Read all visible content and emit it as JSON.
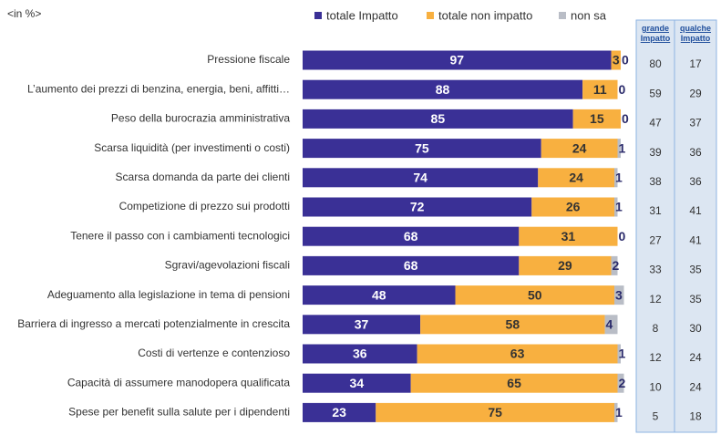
{
  "chart_data": {
    "type": "stacked-bar-horizontal",
    "unit_label": "<in %>",
    "categories": [
      "Pressione fiscale",
      "L’aumento dei prezzi di benzina, energia, beni, affitti…",
      "Peso della burocrazia amministrativa",
      "Scarsa liquidità (per investimenti  o costi)",
      "Scarsa domanda da parte dei clienti",
      "Competizione di prezzo sui prodotti",
      "Tenere il passo con i cambiamenti tecnologici",
      "Sgravi/agevolazioni fiscali",
      "Adeguamento alla legislazione in tema di pensioni",
      "Barriera di ingresso a mercati potenzialmente in crescita",
      "Costi di vertenze e contenzioso",
      "Capacità di assumere manodopera qualificata",
      "Spese per benefit sulla salute per i dipendenti"
    ],
    "series": [
      {
        "name": "totale Impatto",
        "color": "#3a3096",
        "values": [
          97,
          88,
          85,
          75,
          74,
          72,
          68,
          68,
          48,
          37,
          36,
          34,
          23
        ]
      },
      {
        "name": "totale non impatto",
        "color": "#f8b040",
        "values": [
          3,
          11,
          15,
          24,
          24,
          26,
          31,
          29,
          50,
          58,
          63,
          65,
          75
        ]
      },
      {
        "name": "non sa",
        "color": "#b9bdc6",
        "values": [
          0,
          0,
          0,
          1,
          1,
          1,
          0,
          2,
          3,
          4,
          1,
          2,
          1
        ]
      }
    ],
    "legend": "top",
    "table": {
      "headers": [
        "grande Impatto",
        "qualche Impatto"
      ],
      "rows": [
        [
          80,
          17
        ],
        [
          59,
          29
        ],
        [
          47,
          37
        ],
        [
          39,
          36
        ],
        [
          38,
          36
        ],
        [
          31,
          41
        ],
        [
          27,
          41
        ],
        [
          33,
          35
        ],
        [
          12,
          35
        ],
        [
          8,
          30
        ],
        [
          12,
          24
        ],
        [
          10,
          24
        ],
        [
          5,
          18
        ]
      ]
    }
  }
}
